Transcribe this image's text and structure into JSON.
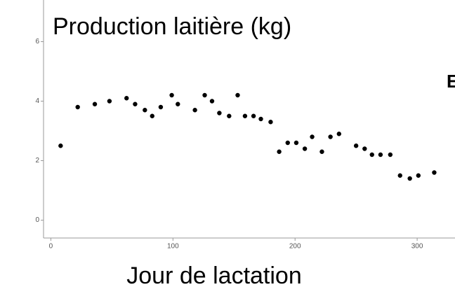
{
  "chart_data": {
    "type": "scatter",
    "title": "Production laitière (kg)",
    "x_label": "Jour de lactation",
    "annotation": "E",
    "color": "#000000",
    "grid": false,
    "xlim": [
      -6,
      331
    ],
    "ylim": [
      -0.6,
      7.4
    ],
    "xticks": [
      0,
      100,
      200,
      300
    ],
    "yticks": [
      0,
      2,
      4,
      6
    ],
    "x": [
      8,
      22,
      36,
      48,
      62,
      69,
      77,
      83,
      90,
      99,
      104,
      118,
      126,
      132,
      138,
      146,
      153,
      159,
      166,
      172,
      180,
      187,
      194,
      201,
      208,
      214,
      222,
      229,
      236,
      250,
      257,
      263,
      270,
      278,
      286,
      294,
      301,
      314
    ],
    "values": [
      2.5,
      3.8,
      3.9,
      4.0,
      4.1,
      3.9,
      3.7,
      3.5,
      3.8,
      4.2,
      3.9,
      3.7,
      4.2,
      4.0,
      3.6,
      3.5,
      4.2,
      3.5,
      3.5,
      3.4,
      3.3,
      2.3,
      2.6,
      2.6,
      2.4,
      2.8,
      2.3,
      2.8,
      2.9,
      2.5,
      2.4,
      2.2,
      2.2,
      2.2,
      1.5,
      1.4,
      1.5,
      1.6
    ]
  }
}
